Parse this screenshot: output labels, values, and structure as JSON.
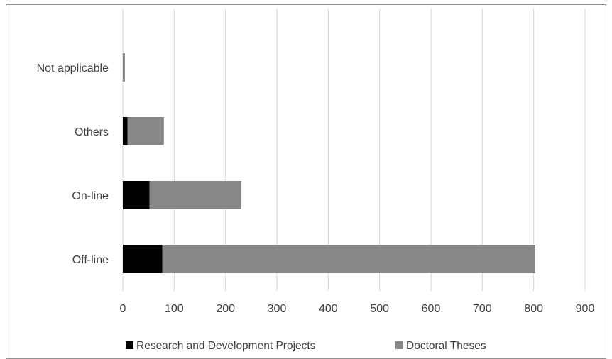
{
  "chart_data": {
    "type": "bar",
    "orientation": "horizontal",
    "stacked": true,
    "categories": [
      "Not applicable",
      "Others",
      "On-line",
      "Off-line"
    ],
    "series": [
      {
        "name": "Research and Development Projects",
        "color": "#000000",
        "values": [
          0,
          9,
          52,
          77
        ]
      },
      {
        "name": "Doctoral Theses",
        "color": "#888888",
        "values": [
          4,
          71,
          179,
          726
        ]
      }
    ],
    "xlim": [
      0,
      900
    ],
    "xticks": [
      "0",
      "100",
      "200",
      "300",
      "400",
      "500",
      "600",
      "700",
      "800",
      "900"
    ],
    "grid": "vertical",
    "legend": "bottom"
  }
}
